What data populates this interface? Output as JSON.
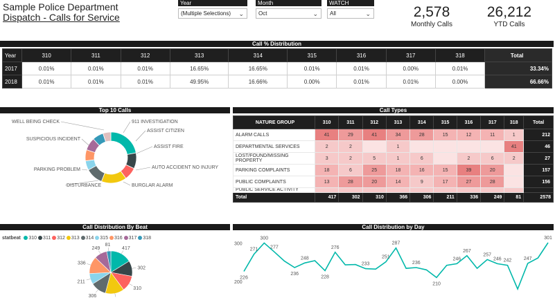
{
  "header": {
    "dept": "Sample Police Department",
    "subtitle": "Dispatch - Calls for Service"
  },
  "slicers": {
    "year": {
      "label": "Year",
      "value": "(Multiple Selections)"
    },
    "month": {
      "label": "Month",
      "value": "Oct"
    },
    "watch": {
      "label": "WATCH",
      "value": "All"
    }
  },
  "kpis": {
    "monthly": {
      "value": "2,578",
      "label": "Monthly Calls"
    },
    "ytd": {
      "value": "26,212",
      "label": "YTD Calls"
    }
  },
  "call_distribution": {
    "title": "Call % Distribution",
    "columns": [
      "Year",
      "310",
      "311",
      "312",
      "313",
      "314",
      "315",
      "316",
      "317",
      "318",
      "Total"
    ],
    "rows": [
      [
        "2017",
        "0.01%",
        "0.01%",
        "0.01%",
        "16.65%",
        "16.65%",
        "0.01%",
        "0.01%",
        "0.00%",
        "0.01%",
        "33.34%"
      ],
      [
        "2018",
        "0.01%",
        "0.01%",
        "0.01%",
        "49.95%",
        "16.66%",
        "0.00%",
        "0.01%",
        "0.01%",
        "0.00%",
        "66.66%"
      ]
    ]
  },
  "top10": {
    "title": "Top 10 Calls",
    "labels": [
      "WELL BEING CHECK",
      "911 INVESTIGATION",
      "ASSIST CITIZEN",
      "ASSIST FIRE",
      "AUTO ACCIDENT NO INJURY",
      "BURGLAR ALARM",
      "DISTURBANCE",
      "PARKING PROBLEM",
      "SUSPICIOUS INCIDENT"
    ]
  },
  "call_types": {
    "title": "Call Types",
    "columns": [
      "NATURE GROUP",
      "310",
      "311",
      "312",
      "313",
      "314",
      "315",
      "316",
      "317",
      "318",
      "Total"
    ],
    "rows": [
      [
        "ALARM CALLS",
        "41",
        "29",
        "41",
        "34",
        "28",
        "15",
        "12",
        "11",
        "1",
        "212"
      ],
      [
        "DEPARTMENTAL SERVICES",
        "2",
        "2",
        "",
        "1",
        "",
        "",
        "",
        "",
        "41",
        "46"
      ],
      [
        "LOST/FOUND/MISSING PROPERTY",
        "3",
        "2",
        "5",
        "1",
        "6",
        "",
        "2",
        "6",
        "2",
        "27"
      ],
      [
        "PARKING COMPLAINTS",
        "18",
        "6",
        "25",
        "18",
        "16",
        "15",
        "39",
        "20",
        "",
        "157"
      ],
      [
        "PUBLIC COMPLAINTS",
        "13",
        "28",
        "20",
        "14",
        "9",
        "17",
        "27",
        "28",
        "",
        "156"
      ]
    ],
    "partial_row": "PUBLIC SERVICE ACTIVITY",
    "footer": [
      "Total",
      "417",
      "302",
      "310",
      "366",
      "306",
      "211",
      "336",
      "249",
      "81",
      "2578"
    ]
  },
  "beat": {
    "title": "Call Distribution By Beat",
    "legend_title": "statbeat",
    "legend": [
      {
        "name": "310",
        "color": "#01b8aa"
      },
      {
        "name": "311",
        "color": "#374649"
      },
      {
        "name": "312",
        "color": "#fd625e"
      },
      {
        "name": "313",
        "color": "#f2c80f"
      },
      {
        "name": "314",
        "color": "#5f6b6d"
      },
      {
        "name": "315",
        "color": "#8ad4eb"
      },
      {
        "name": "316",
        "color": "#fe9666"
      },
      {
        "name": "317",
        "color": "#a66999"
      },
      {
        "name": "318",
        "color": "#3599b8"
      }
    ],
    "values": [
      417,
      302,
      310,
      366,
      306,
      211,
      336,
      249,
      81
    ]
  },
  "day_chart": {
    "title": "Call Distribution by Day",
    "y_ticks": [
      "300",
      "200"
    ],
    "values": [
      226,
      271,
      300,
      277,
      253,
      236,
      248,
      254,
      228,
      276,
      243,
      244,
      233,
      232,
      251,
      287,
      234,
      236,
      230,
      210,
      242,
      246,
      267,
      234,
      257,
      246,
      242,
      180,
      247,
      261,
      301
    ],
    "ylim": [
      180,
      310
    ]
  }
}
